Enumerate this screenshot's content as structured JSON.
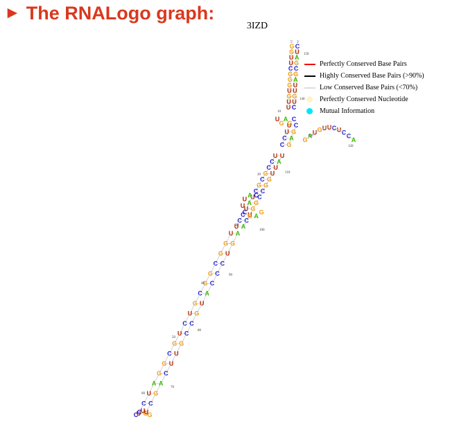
{
  "header": {
    "title": "The RNALogo graph:",
    "arrow": "►"
  },
  "molecule": "3IZD",
  "legend": [
    {
      "label": "Perfectly Conserved Base Pairs",
      "type": "line",
      "color": "#ee0000"
    },
    {
      "label": "Highly Conserved Base Pairs (>90%)",
      "type": "line",
      "color": "#000000"
    },
    {
      "label": "Low Conserved Base Pairs (<70%)",
      "type": "line",
      "color": "#dddddd"
    },
    {
      "label": "Perfectly Conserved Nucleotide",
      "type": "dot",
      "color": "#fff3c8"
    },
    {
      "label": "Mutual Information",
      "type": "dot",
      "color": "#00e5ff"
    }
  ],
  "colors": {
    "G": "#f39c12",
    "C": "#1a1ad0",
    "U": "#b22a00",
    "A": "#33bb00"
  },
  "ends": [
    "5'",
    "3'"
  ],
  "numbers": [
    "150",
    "140",
    "10",
    "130",
    "120",
    "20",
    "110",
    "30",
    "100",
    "90",
    "40",
    "80",
    "50",
    "70",
    "60"
  ],
  "structure": {
    "pairs1": "GGUUCGGGUGUUUGGCGGCGUCUGCGGAUCU",
    "pairs1_right": "CUAGCGAUUGUCAGUCCCAUGCCGUUCAGCG",
    "pairs2": "UCCGCGCUAUCCU",
    "pairs2_right": "UAUUGGCCGGUCA",
    "pairs3": "UUCCUAGACU",
    "pairs3_right": "CGAGGUCGGG",
    "loop_top": "UGAGC",
    "hairpin": "GAUGUUCUCCA",
    "bulge": "GAGCUUAC",
    "bottom": "CCUUG"
  }
}
